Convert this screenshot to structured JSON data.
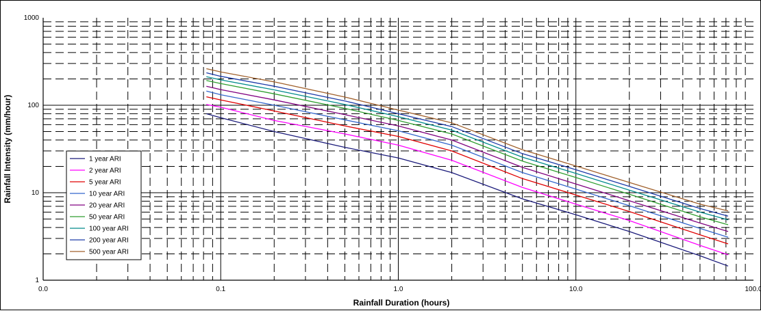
{
  "chart_data": {
    "type": "line",
    "title": "",
    "xlabel": "Rainfall Duration (hours)",
    "ylabel": "Rainfall Intensity (mm/hour)",
    "x_scale": "log",
    "y_scale": "log",
    "xlim": [
      0.01,
      100
    ],
    "ylim": [
      1,
      1000
    ],
    "x_tick_labels": [
      "0.0",
      "0.1",
      "1.0",
      "10.0",
      "100.0"
    ],
    "y_tick_labels": [
      "1",
      "10",
      "100",
      "1000"
    ],
    "grid": true,
    "legend_position": "left",
    "x": [
      0.083,
      0.1,
      0.2,
      0.5,
      1.0,
      2.0,
      5.0,
      10.0,
      20.0,
      50.0,
      72.0
    ],
    "series": [
      {
        "name": "1 year ARI",
        "color": "#1a1a7a",
        "values": [
          80,
          72,
          50,
          33,
          25,
          17,
          8.5,
          5.6,
          3.6,
          1.9,
          1.45
        ]
      },
      {
        "name": "2 year ARI",
        "color": "#ff00ff",
        "values": [
          102,
          95,
          67,
          47,
          35,
          23.5,
          11.5,
          7.4,
          4.8,
          2.5,
          1.95
        ]
      },
      {
        "name": "5 year ARI",
        "color": "#e00000",
        "values": [
          125,
          115,
          86,
          58,
          44,
          30,
          14.5,
          9.4,
          6.1,
          3.3,
          2.6
        ]
      },
      {
        "name": "10 year ARI",
        "color": "#3366cc",
        "values": [
          145,
          132,
          100,
          68,
          51,
          35,
          17,
          11,
          7.1,
          3.9,
          3.1
        ]
      },
      {
        "name": "20 year ARI",
        "color": "#800080",
        "values": [
          165,
          151,
          115,
          78,
          58,
          40,
          19.5,
          12.6,
          8.1,
          4.5,
          3.6
        ]
      },
      {
        "name": "50 year ARI",
        "color": "#2e9e2e",
        "values": [
          192,
          177,
          135,
          92,
          67,
          47,
          23,
          14.9,
          9.6,
          5.3,
          4.3
        ]
      },
      {
        "name": "100 year ARI",
        "color": "#008b8b",
        "values": [
          212,
          195,
          150,
          102,
          74,
          52,
          25.5,
          16.6,
          10.7,
          6.0,
          4.9
        ]
      },
      {
        "name": "200 year ARI",
        "color": "#1c3aa8",
        "values": [
          235,
          214,
          165,
          112,
          80,
          57,
          28,
          18.3,
          11.8,
          6.6,
          5.4
        ]
      },
      {
        "name": "500 year ARI",
        "color": "#a0602c",
        "values": [
          262,
          240,
          185,
          124,
          88,
          63,
          31,
          20.2,
          13.1,
          7.4,
          6.2
        ]
      }
    ]
  }
}
